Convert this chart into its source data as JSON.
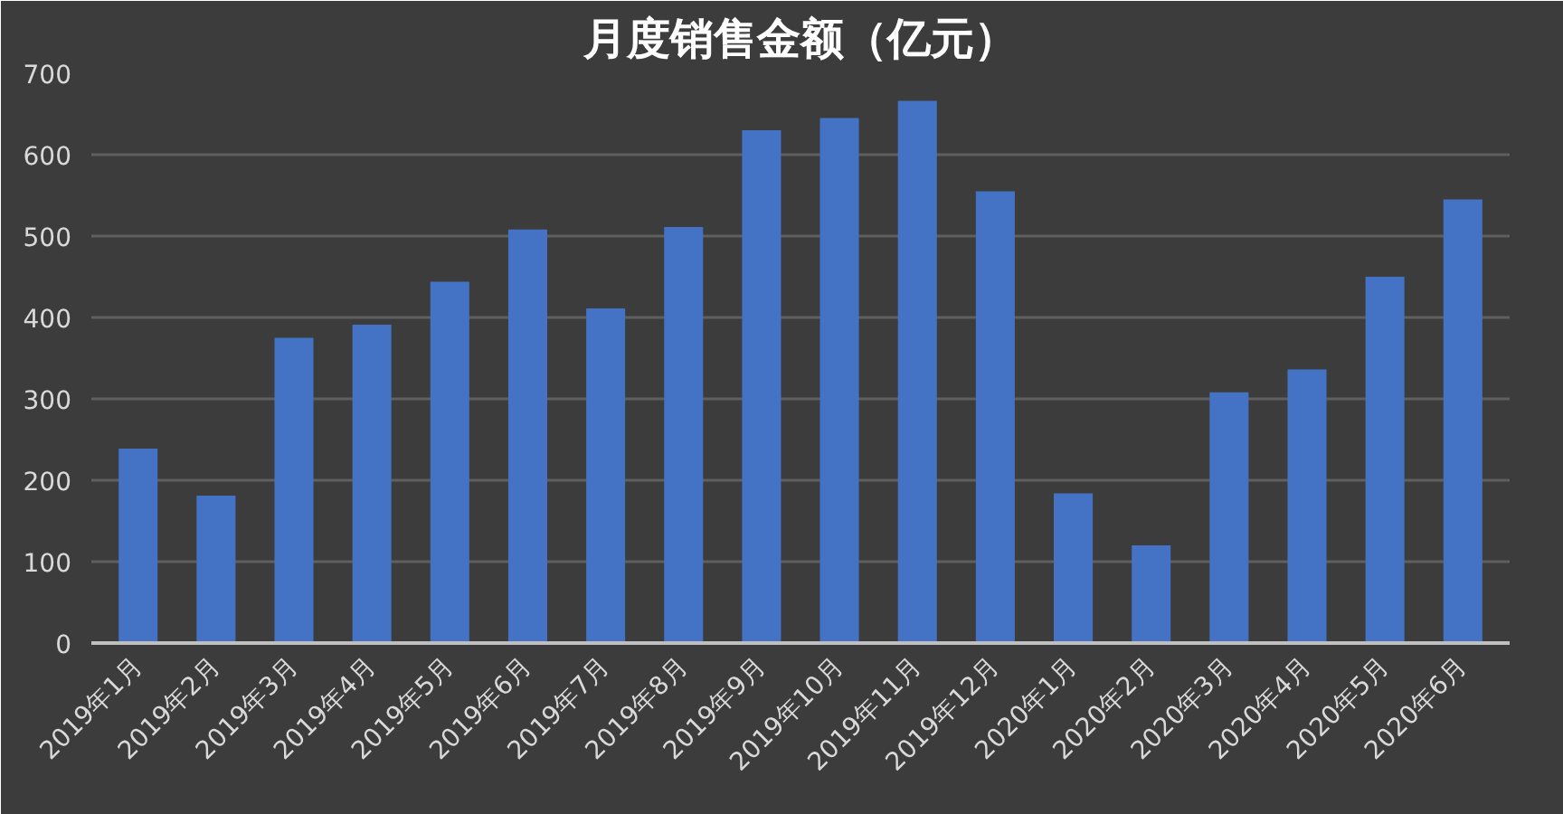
{
  "chart_data": {
    "type": "bar",
    "title": "月度销售金额（亿元）",
    "categories": [
      "2019年1月",
      "2019年2月",
      "2019年3月",
      "2019年4月",
      "2019年5月",
      "2019年6月",
      "2019年7月",
      "2019年8月",
      "2019年9月",
      "2019年10月",
      "2019年11月",
      "2019年12月",
      "2020年1月",
      "2020年2月",
      "2020年3月",
      "2020年4月",
      "2020年5月",
      "2020年6月"
    ],
    "values": [
      239,
      181,
      375,
      391,
      444,
      508,
      411,
      511,
      630,
      645,
      666,
      555,
      184,
      120,
      308,
      336,
      450,
      545
    ],
    "color": "#4472c4",
    "ylim": [
      0,
      700
    ],
    "yticks": [
      0,
      100,
      200,
      300,
      400,
      500,
      600,
      700
    ],
    "grid": "y"
  }
}
